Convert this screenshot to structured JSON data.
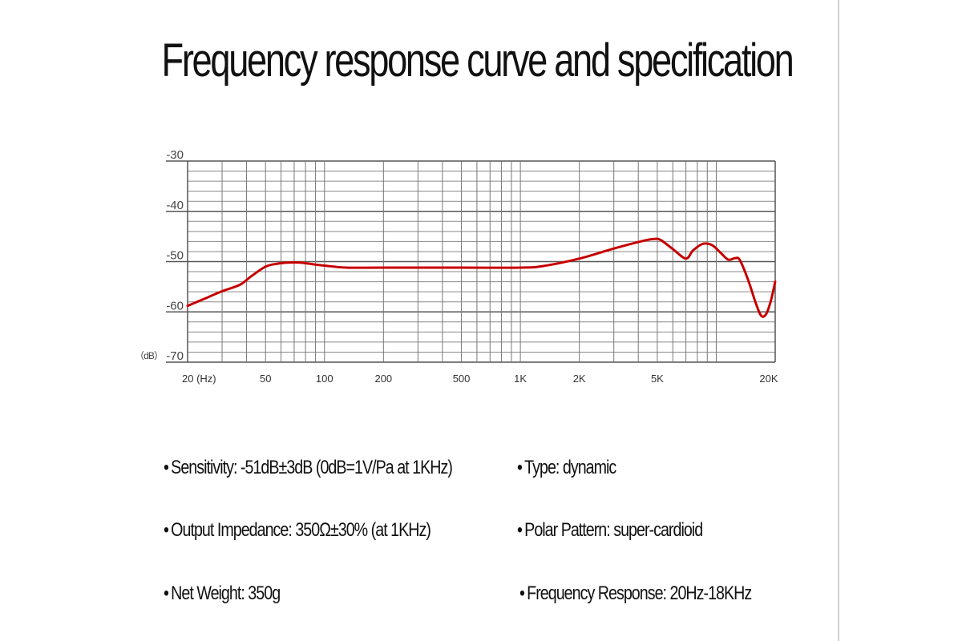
{
  "page": {
    "title": "Frequency response curve and specification",
    "accent_color": "#e00000"
  },
  "specs": {
    "left": [
      {
        "label": "Sensitivity:",
        "value": "-51dB±3dB (0dB=1V/Pa at 1KHz)"
      },
      {
        "label": "Output Impedance:",
        "value": "350Ω±30% (at 1KHz)"
      },
      {
        "label": "Net Weight:",
        "value": "350g"
      }
    ],
    "right": [
      {
        "label": "Type:",
        "value": "dynamic"
      },
      {
        "label": "Polar Pattern:",
        "value": "super-cardioid"
      },
      {
        "label": "Frequency Response:",
        "value": "20Hz-18KHz"
      }
    ],
    "bullet": "•"
  },
  "chart_data": {
    "type": "line",
    "title": "",
    "xlabel": "(Hz)",
    "ylabel": "(dB)",
    "xscale": "log",
    "xlim": [
      20,
      20000
    ],
    "ylim": [
      -70,
      -30
    ],
    "grid": true,
    "y_ticks": [
      -30,
      -40,
      -50,
      -60,
      -70
    ],
    "y_tick_labels": [
      "-30",
      "-40",
      "-50",
      "-60",
      "-70"
    ],
    "y_unit_label": "（dB）",
    "x_ticks": [
      20,
      50,
      100,
      200,
      500,
      1000,
      2000,
      5000,
      20000
    ],
    "x_tick_labels": [
      "20 (Hz)",
      "50",
      "100",
      "200",
      "500",
      "1K",
      "2K",
      "5K",
      "20K"
    ],
    "series": [
      {
        "name": "Frequency response",
        "color": "#e00000",
        "x": [
          20,
          25,
          30,
          37,
          42,
          50,
          58,
          65,
          75,
          90,
          100,
          130,
          200,
          500,
          1000,
          1300,
          2000,
          3000,
          4200,
          4800,
          5200,
          6000,
          7000,
          7600,
          8500,
          9500,
          10500,
          11500,
          12500,
          13200,
          14500,
          16000,
          17000,
          18000,
          19000,
          20000
        ],
        "y": [
          -58.8,
          -57.2,
          -55.9,
          -54.6,
          -53.0,
          -51.0,
          -50.4,
          -50.2,
          -50.2,
          -50.6,
          -50.8,
          -51.2,
          -51.2,
          -51.2,
          -51.2,
          -50.9,
          -49.4,
          -47.4,
          -45.9,
          -45.5,
          -45.7,
          -47.5,
          -49.4,
          -47.8,
          -46.5,
          -46.7,
          -48.2,
          -49.6,
          -49.3,
          -49.7,
          -53.5,
          -58.5,
          -60.8,
          -60.4,
          -57.8,
          -54.0
        ]
      }
    ]
  }
}
